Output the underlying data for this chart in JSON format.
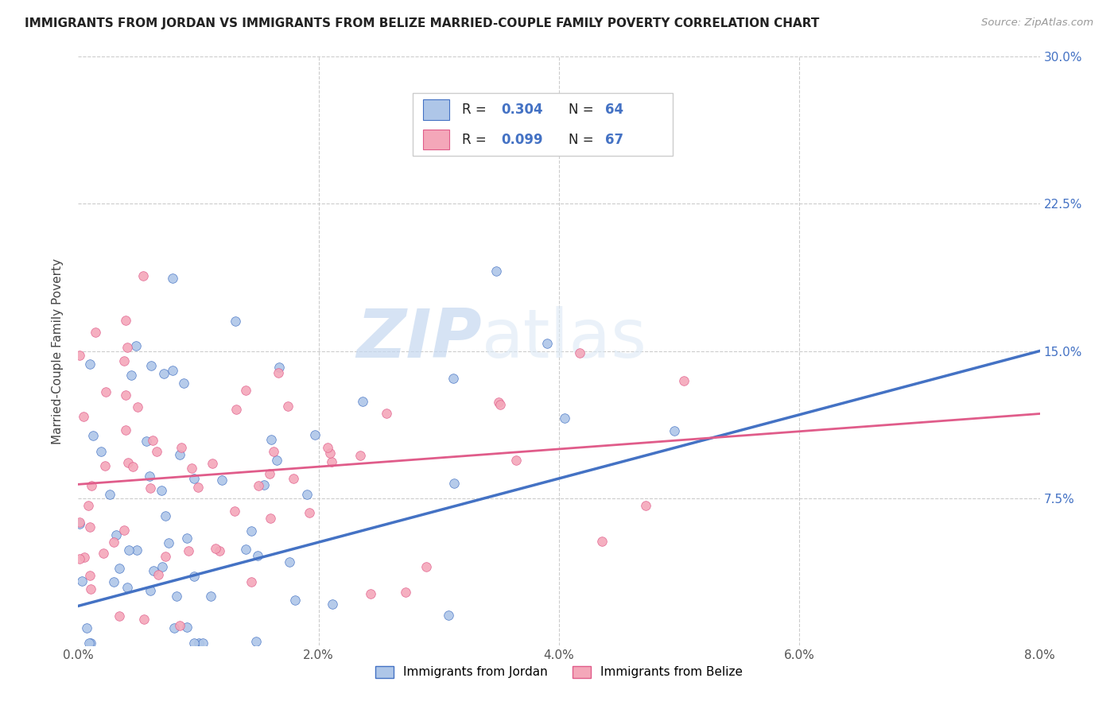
{
  "title": "IMMIGRANTS FROM JORDAN VS IMMIGRANTS FROM BELIZE MARRIED-COUPLE FAMILY POVERTY CORRELATION CHART",
  "source": "Source: ZipAtlas.com",
  "xlim": [
    0.0,
    0.08
  ],
  "ylim": [
    0.0,
    0.3
  ],
  "ylabel": "Married-Couple Family Poverty",
  "legend_label1": "Immigrants from Jordan",
  "legend_label2": "Immigrants from Belize",
  "R1": 0.304,
  "N1": 64,
  "R2": 0.099,
  "N2": 67,
  "color_jordan": "#aec6e8",
  "color_belize": "#f4a7b9",
  "color_jordan_dark": "#4472c4",
  "color_belize_dark": "#e05c8a",
  "watermark_zip": "ZIP",
  "watermark_atlas": "atlas",
  "background_color": "#ffffff",
  "grid_color": "#cccccc",
  "jordan_line_x0": 0.0,
  "jordan_line_y0": 0.02,
  "jordan_line_x1": 0.08,
  "jordan_line_y1": 0.15,
  "belize_line_x0": 0.0,
  "belize_line_y0": 0.082,
  "belize_line_x1": 0.08,
  "belize_line_y1": 0.118
}
